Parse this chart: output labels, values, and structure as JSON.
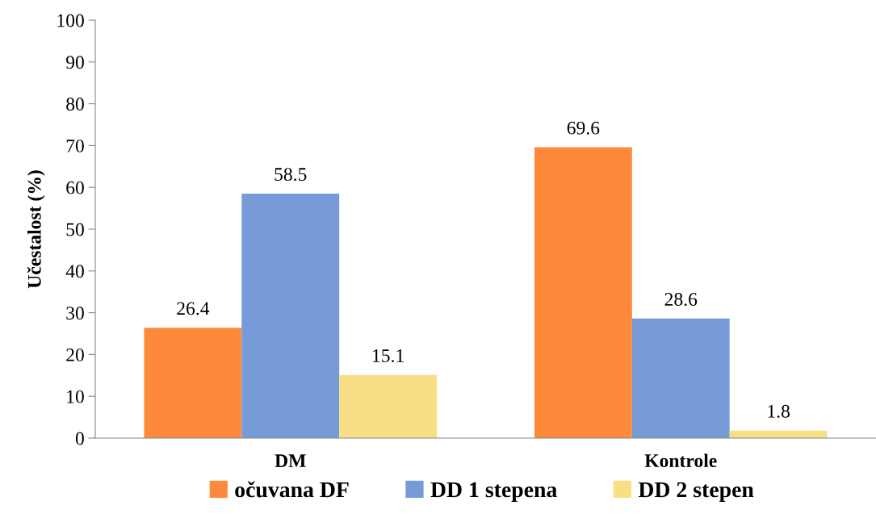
{
  "chart_data": {
    "type": "bar",
    "ylabel": "Učestalost (%)",
    "categories": [
      "DM",
      "Kontrole"
    ],
    "series": [
      {
        "name": "očuvana DF",
        "color": "#fd8a3a",
        "values": [
          26.4,
          69.6
        ]
      },
      {
        "name": "DD 1 stepena",
        "color": "#779bd8",
        "values": [
          58.5,
          28.6
        ]
      },
      {
        "name": "DD 2 stepen",
        "color": "#f8df85",
        "values": [
          15.1,
          1.8
        ]
      }
    ],
    "ylim": [
      0,
      100
    ],
    "yticks": [
      0,
      10,
      20,
      30,
      40,
      50,
      60,
      70,
      80,
      90,
      100
    ],
    "data_labels": true,
    "legend": "bottom",
    "grid": false
  }
}
